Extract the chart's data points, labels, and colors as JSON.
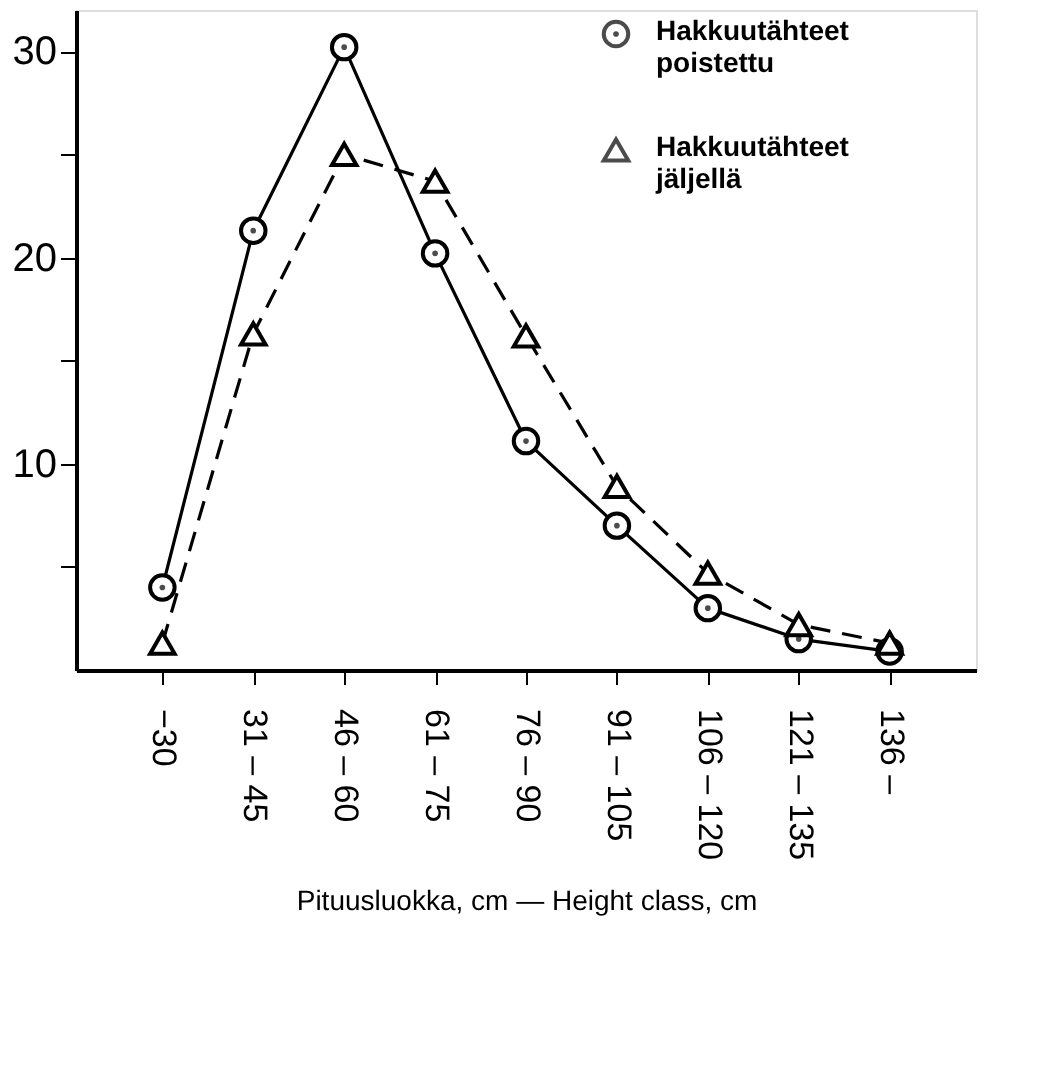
{
  "chart_data": {
    "type": "line",
    "categories": [
      "−30",
      "31 – 45",
      "46 – 60",
      "61 – 75",
      "76 – 90",
      "91 – 105",
      "106 – 120",
      "121 – 135",
      "136 –"
    ],
    "xlabel": "Pituusluokka, cm — Height class, cm",
    "ylim": [
      0,
      32
    ],
    "yticks": [
      {
        "value": 5,
        "label": null
      },
      10,
      {
        "value": 15,
        "label": null
      },
      20,
      {
        "value": 25,
        "label": null
      },
      30
    ],
    "grid": false,
    "legend": "top right",
    "series": [
      {
        "name": "Hakkuutähteet\npoistettu",
        "color": "#000000",
        "marker": "circle",
        "line_style": "solid",
        "values": [
          4.0,
          21.3,
          30.2,
          20.2,
          11.1,
          7.0,
          3.0,
          1.5,
          0.9
        ]
      },
      {
        "name": "Hakkuutähteet\njäljellä",
        "color": "#000000",
        "marker": "triangle",
        "line_style": "dashed",
        "values": [
          1.3,
          16.3,
          25.0,
          23.7,
          16.2,
          8.9,
          4.7,
          2.2,
          1.3
        ]
      }
    ]
  }
}
